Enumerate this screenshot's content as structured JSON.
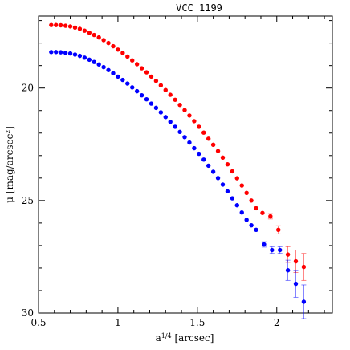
{
  "chart_data": {
    "type": "scatter",
    "title": "VCC 1199",
    "xlabel": "a^{1/4} [arcsec]",
    "ylabel": "μ [mag/arcsec²]",
    "xlim": [
      0.5,
      2.35
    ],
    "ylim": [
      30,
      16.8
    ],
    "y_inverted": true,
    "x_ticks": [
      0.5,
      1,
      1.5,
      2
    ],
    "x_tick_labels": [
      "0.5",
      "1",
      "1.5",
      "2"
    ],
    "y_ticks": [
      20,
      25,
      30
    ],
    "y_tick_labels": [
      "20",
      "25",
      "30"
    ],
    "grid": false,
    "legend": "none",
    "series": [
      {
        "color": "#ff0000",
        "x": [
          0.58,
          0.61,
          0.64,
          0.67,
          0.7,
          0.73,
          0.76,
          0.79,
          0.82,
          0.85,
          0.88,
          0.91,
          0.94,
          0.97,
          1.0,
          1.03,
          1.06,
          1.09,
          1.12,
          1.15,
          1.18,
          1.21,
          1.24,
          1.27,
          1.3,
          1.33,
          1.36,
          1.39,
          1.42,
          1.45,
          1.48,
          1.51,
          1.54,
          1.57,
          1.6,
          1.63,
          1.66,
          1.69,
          1.72,
          1.75,
          1.78,
          1.81,
          1.84,
          1.87,
          1.91,
          1.96,
          2.01,
          2.07,
          2.12,
          2.17
        ],
        "y": [
          17.2,
          17.2,
          17.21,
          17.23,
          17.26,
          17.31,
          17.37,
          17.45,
          17.54,
          17.64,
          17.75,
          17.87,
          18.0,
          18.14,
          18.29,
          18.44,
          18.6,
          18.77,
          18.94,
          19.12,
          19.3,
          19.49,
          19.68,
          19.88,
          20.09,
          20.3,
          20.52,
          20.75,
          20.98,
          21.22,
          21.47,
          21.72,
          21.98,
          22.25,
          22.52,
          22.8,
          23.09,
          23.39,
          23.7,
          24.01,
          24.33,
          24.66,
          25.0,
          25.34,
          25.55,
          25.7,
          26.3,
          27.4,
          27.7,
          27.95
        ],
        "yerr": [
          0,
          0,
          0,
          0,
          0,
          0,
          0,
          0,
          0,
          0,
          0,
          0,
          0,
          0,
          0,
          0,
          0,
          0,
          0,
          0,
          0,
          0,
          0,
          0,
          0,
          0,
          0,
          0,
          0,
          0,
          0,
          0,
          0,
          0,
          0,
          0,
          0,
          0,
          0,
          0,
          0,
          0,
          0,
          0,
          0,
          0.12,
          0.18,
          0.35,
          0.5,
          0.6
        ]
      },
      {
        "color": "#0000ff",
        "x": [
          0.58,
          0.61,
          0.64,
          0.67,
          0.7,
          0.73,
          0.76,
          0.79,
          0.82,
          0.85,
          0.88,
          0.91,
          0.94,
          0.97,
          1.0,
          1.03,
          1.06,
          1.09,
          1.12,
          1.15,
          1.18,
          1.21,
          1.24,
          1.27,
          1.3,
          1.33,
          1.36,
          1.39,
          1.42,
          1.45,
          1.48,
          1.51,
          1.54,
          1.57,
          1.6,
          1.63,
          1.66,
          1.69,
          1.72,
          1.75,
          1.78,
          1.81,
          1.84,
          1.87,
          1.92,
          1.97,
          2.02,
          2.07,
          2.12,
          2.17
        ],
        "y": [
          18.4,
          18.4,
          18.41,
          18.43,
          18.46,
          18.51,
          18.57,
          18.65,
          18.74,
          18.84,
          18.95,
          19.07,
          19.2,
          19.34,
          19.49,
          19.64,
          19.8,
          19.97,
          20.14,
          20.32,
          20.5,
          20.69,
          20.88,
          21.08,
          21.29,
          21.5,
          21.72,
          21.95,
          22.18,
          22.42,
          22.67,
          22.92,
          23.18,
          23.45,
          23.72,
          24.0,
          24.29,
          24.59,
          24.9,
          25.21,
          25.53,
          25.86,
          26.1,
          26.3,
          26.95,
          27.2,
          27.2,
          28.1,
          28.7,
          29.5
        ],
        "yerr": [
          0,
          0,
          0,
          0,
          0,
          0,
          0,
          0,
          0,
          0,
          0,
          0,
          0,
          0,
          0,
          0,
          0,
          0,
          0,
          0,
          0,
          0,
          0,
          0,
          0,
          0,
          0,
          0,
          0,
          0,
          0,
          0,
          0,
          0,
          0,
          0,
          0,
          0,
          0,
          0,
          0,
          0,
          0,
          0,
          0.12,
          0.15,
          0.15,
          0.45,
          0.6,
          0.75
        ]
      }
    ]
  }
}
